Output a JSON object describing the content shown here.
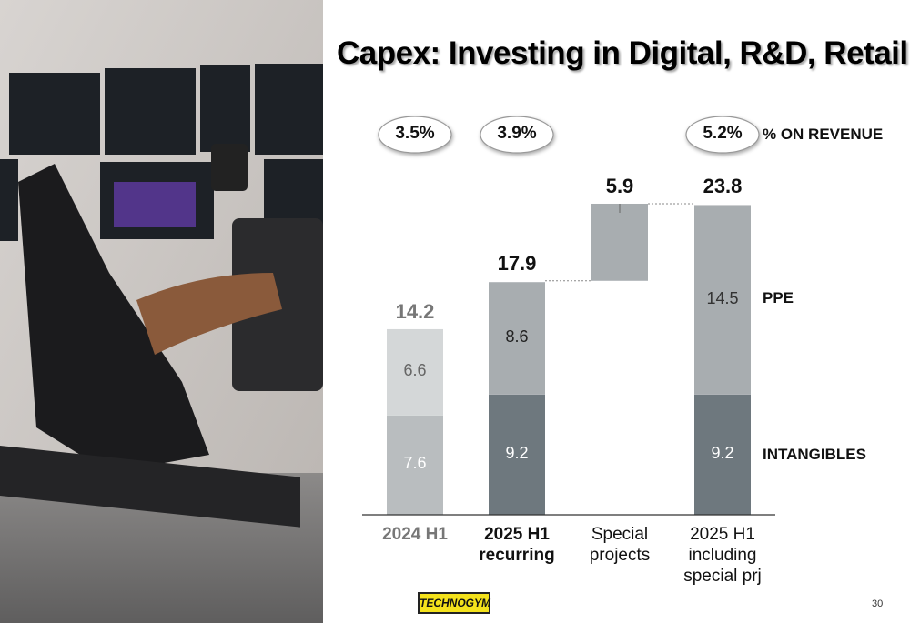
{
  "chart_data": {
    "type": "waterfall",
    "title": "Capex: Investing in Digital, R&D, Retail",
    "categories": [
      "2024 H1",
      "2025 H1\nrecurring",
      "Special\nprojects",
      "2025 H1\nincluding\nspecial prj"
    ],
    "series": [
      {
        "name": "INTANGIBLES",
        "colors": [
          "#b9bdbf",
          "#6e787e",
          null,
          "#6e787e"
        ],
        "values": [
          7.6,
          9.2,
          null,
          9.2
        ]
      },
      {
        "name": "PPE",
        "colors": [
          "#d4d7d8",
          "#a8adb0",
          null,
          "#a8adb0"
        ],
        "values": [
          6.6,
          8.6,
          null,
          14.5
        ]
      },
      {
        "colors": [
          null,
          null,
          "#a8adb0",
          null
        ],
        "float": true,
        "values": [
          null,
          null,
          5.9,
          null
        ]
      }
    ],
    "totals": [
      14.2,
      17.9,
      null,
      23.8
    ],
    "revenue_share": {
      "label": "% ON REVENUE",
      "values": [
        3.5,
        3.9,
        null,
        5.2
      ],
      "value_labels": [
        "3.5%",
        "3.9%",
        null,
        "5.2%"
      ]
    }
  },
  "page_number": "30",
  "logo": "TECHNOGYM"
}
